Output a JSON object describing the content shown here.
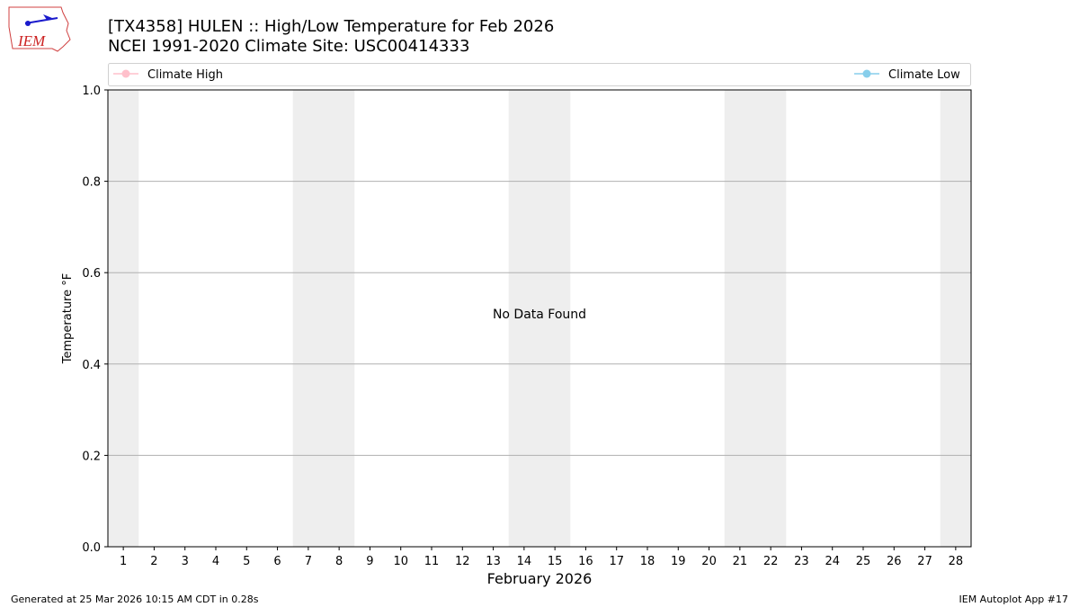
{
  "logo": "IEM",
  "chart_data": {
    "type": "line",
    "title": "[TX4358] HULEN :: High/Low Temperature for Feb 2026",
    "subtitle": "NCEI 1991-2020 Climate Site: USC00414333",
    "x_label": "February 2026",
    "y_label": "Temperature °F",
    "annotation": "No Data Found",
    "categories": [
      "1",
      "2",
      "3",
      "4",
      "5",
      "6",
      "7",
      "8",
      "9",
      "10",
      "11",
      "12",
      "13",
      "14",
      "15",
      "16",
      "17",
      "18",
      "19",
      "20",
      "21",
      "22",
      "23",
      "24",
      "25",
      "26",
      "27",
      "28"
    ],
    "series": [
      {
        "name": "Climate High",
        "color": "#ffc0cb",
        "values": [
          null,
          null,
          null,
          null,
          null,
          null,
          null,
          null,
          null,
          null,
          null,
          null,
          null,
          null,
          null,
          null,
          null,
          null,
          null,
          null,
          null,
          null,
          null,
          null,
          null,
          null,
          null,
          null
        ]
      },
      {
        "name": "Climate Low",
        "color": "#87ceeb",
        "values": [
          null,
          null,
          null,
          null,
          null,
          null,
          null,
          null,
          null,
          null,
          null,
          null,
          null,
          null,
          null,
          null,
          null,
          null,
          null,
          null,
          null,
          null,
          null,
          null,
          null,
          null,
          null,
          null
        ]
      }
    ],
    "ylim": [
      0,
      1
    ],
    "yticks": [
      {
        "value": 0,
        "label": "0.0"
      },
      0.2,
      0.4,
      0.6,
      0.8,
      {
        "value": 1,
        "label": "1.0"
      }
    ],
    "grid": true,
    "footer_left": "Generated at 25 Mar 2026 10:15 AM CDT in 0.28s",
    "footer_right": "IEM Autoplot App #17"
  }
}
